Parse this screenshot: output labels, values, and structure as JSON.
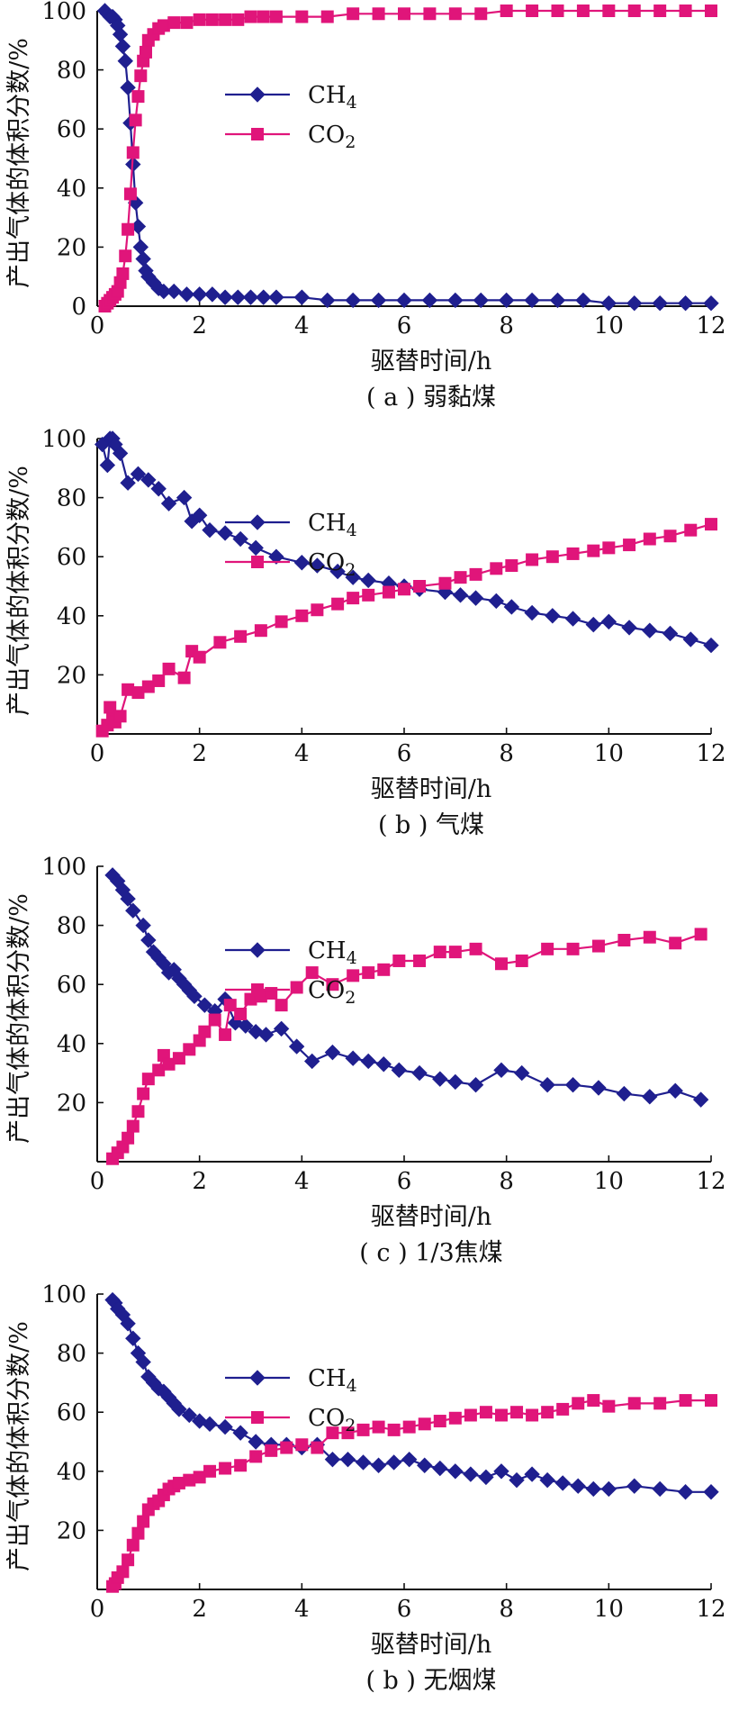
{
  "colors": {
    "ch4": "#1f1f8f",
    "co2": "#e0157a"
  },
  "chart_data": [
    {
      "type": "line",
      "caption": "( a ) 弱黏煤",
      "xlabel": "驱替时间/h",
      "ylabel": "产出气体的体积分数/%",
      "xlim": [
        0,
        12
      ],
      "ylim": [
        0,
        100
      ],
      "xticks": [
        0,
        2,
        4,
        6,
        8,
        10,
        12
      ],
      "yticks": [
        0,
        20,
        40,
        60,
        80,
        100
      ],
      "legend": [
        "CH4",
        "CO2"
      ],
      "series": [
        {
          "name": "CH4",
          "marker": "diamond",
          "x": [
            0.15,
            0.2,
            0.25,
            0.3,
            0.35,
            0.4,
            0.45,
            0.5,
            0.55,
            0.6,
            0.65,
            0.7,
            0.75,
            0.8,
            0.85,
            0.9,
            0.95,
            1.0,
            1.1,
            1.2,
            1.3,
            1.5,
            1.75,
            2.0,
            2.25,
            2.5,
            2.75,
            3.0,
            3.25,
            3.5,
            4.0,
            4.5,
            5.0,
            5.5,
            6.0,
            6.5,
            7.0,
            7.5,
            8.0,
            8.5,
            9.0,
            9.5,
            10.0,
            10.5,
            11.0,
            11.5,
            12.0
          ],
          "y": [
            100,
            99,
            98,
            98,
            97,
            95,
            92,
            88,
            83,
            74,
            62,
            48,
            35,
            27,
            20,
            16,
            12,
            10,
            8,
            6,
            5,
            5,
            4,
            4,
            4,
            3,
            3,
            3,
            3,
            3,
            3,
            2,
            2,
            2,
            2,
            2,
            2,
            2,
            2,
            2,
            2,
            2,
            1,
            1,
            1,
            1,
            1
          ]
        },
        {
          "name": "CO2",
          "marker": "square",
          "x": [
            0.15,
            0.2,
            0.25,
            0.3,
            0.35,
            0.4,
            0.45,
            0.5,
            0.55,
            0.6,
            0.65,
            0.7,
            0.75,
            0.8,
            0.85,
            0.9,
            0.95,
            1.0,
            1.1,
            1.2,
            1.3,
            1.5,
            1.75,
            2.0,
            2.25,
            2.5,
            2.75,
            3.0,
            3.25,
            3.5,
            4.0,
            4.5,
            5.0,
            5.5,
            6.0,
            6.5,
            7.0,
            7.5,
            8.0,
            8.5,
            9.0,
            9.5,
            10.0,
            10.5,
            11.0,
            11.5,
            12.0
          ],
          "y": [
            0,
            1,
            2,
            3,
            4,
            5,
            8,
            11,
            17,
            26,
            38,
            52,
            63,
            71,
            78,
            83,
            86,
            90,
            92,
            94,
            95,
            96,
            96,
            97,
            97,
            97,
            97,
            98,
            98,
            98,
            98,
            98,
            99,
            99,
            99,
            99,
            99,
            99,
            100,
            100,
            100,
            100,
            100,
            100,
            100,
            100,
            100
          ]
        }
      ]
    },
    {
      "type": "line",
      "caption": "( b ) 气煤",
      "xlabel": "驱替时间/h",
      "ylabel": "产出气体的体积分数/%",
      "xlim": [
        0,
        12
      ],
      "ylim": [
        0,
        100
      ],
      "xticks": [
        0,
        2,
        4,
        6,
        8,
        10,
        12
      ],
      "yticks": [
        20,
        40,
        60,
        80,
        100
      ],
      "ytick_labels_zero_on_x": true,
      "legend": [
        "CH4",
        "CO2"
      ],
      "series": [
        {
          "name": "CH4",
          "marker": "diamond",
          "x": [
            0.1,
            0.2,
            0.25,
            0.3,
            0.35,
            0.45,
            0.6,
            0.8,
            1.0,
            1.2,
            1.4,
            1.7,
            1.85,
            2.0,
            2.2,
            2.5,
            2.8,
            3.1,
            3.5,
            4.0,
            4.3,
            4.7,
            5.0,
            5.3,
            5.7,
            6.0,
            6.3,
            6.8,
            7.1,
            7.4,
            7.8,
            8.1,
            8.5,
            8.9,
            9.3,
            9.7,
            10.0,
            10.4,
            10.8,
            11.2,
            11.6,
            12.0
          ],
          "y": [
            98,
            91,
            100,
            100,
            98,
            95,
            85,
            88,
            86,
            83,
            78,
            80,
            72,
            74,
            69,
            68,
            66,
            63,
            60,
            58,
            57,
            55,
            53,
            52,
            51,
            50,
            49,
            48,
            47,
            46,
            45,
            43,
            41,
            40,
            39,
            37,
            38,
            36,
            35,
            34,
            32,
            30
          ]
        },
        {
          "name": "CO2",
          "marker": "square",
          "x": [
            0.1,
            0.2,
            0.25,
            0.3,
            0.35,
            0.45,
            0.6,
            0.8,
            1.0,
            1.2,
            1.4,
            1.7,
            1.85,
            2.0,
            2.4,
            2.8,
            3.2,
            3.6,
            4.0,
            4.3,
            4.7,
            5.0,
            5.3,
            5.7,
            6.0,
            6.3,
            6.8,
            7.1,
            7.4,
            7.8,
            8.1,
            8.5,
            8.9,
            9.3,
            9.7,
            10.0,
            10.4,
            10.8,
            11.2,
            11.6,
            12.0
          ],
          "y": [
            1,
            3,
            9,
            5,
            4,
            6,
            15,
            14,
            16,
            18,
            22,
            19,
            28,
            26,
            31,
            33,
            35,
            38,
            40,
            42,
            44,
            46,
            47,
            48,
            49,
            50,
            51,
            53,
            54,
            56,
            57,
            59,
            60,
            61,
            62,
            63,
            64,
            66,
            67,
            69,
            71
          ]
        }
      ]
    },
    {
      "type": "line",
      "caption": "( c ) 1/3焦煤",
      "xlabel": "驱替时间/h",
      "ylabel": "产出气体的体积分数/%",
      "xlim": [
        0,
        12
      ],
      "ylim": [
        0,
        100
      ],
      "xticks": [
        0,
        2,
        4,
        6,
        8,
        10,
        12
      ],
      "yticks": [
        20,
        40,
        60,
        80,
        100
      ],
      "ytick_labels_zero_on_x": true,
      "legend": [
        "CH4",
        "CO2"
      ],
      "series": [
        {
          "name": "CH4",
          "marker": "diamond",
          "x": [
            0.3,
            0.4,
            0.5,
            0.6,
            0.7,
            0.9,
            1.0,
            1.1,
            1.2,
            1.3,
            1.4,
            1.5,
            1.6,
            1.7,
            1.8,
            1.9,
            2.1,
            2.3,
            2.5,
            2.7,
            2.9,
            3.1,
            3.3,
            3.6,
            3.9,
            4.2,
            4.6,
            5.0,
            5.3,
            5.6,
            5.9,
            6.3,
            6.7,
            7.0,
            7.4,
            7.9,
            8.3,
            8.8,
            9.3,
            9.8,
            10.3,
            10.8,
            11.3,
            11.8
          ],
          "y": [
            97,
            95,
            92,
            89,
            85,
            80,
            75,
            71,
            69,
            67,
            64,
            65,
            62,
            60,
            58,
            56,
            53,
            51,
            55,
            47,
            46,
            44,
            43,
            45,
            39,
            34,
            37,
            35,
            34,
            33,
            31,
            30,
            28,
            27,
            26,
            31,
            30,
            26,
            26,
            25,
            23,
            22,
            24,
            21
          ]
        },
        {
          "name": "CO2",
          "marker": "square",
          "x": [
            0.3,
            0.4,
            0.5,
            0.6,
            0.7,
            0.8,
            0.9,
            1.0,
            1.2,
            1.3,
            1.4,
            1.6,
            1.8,
            2.0,
            2.1,
            2.3,
            2.5,
            2.6,
            2.8,
            3.0,
            3.2,
            3.4,
            3.6,
            3.9,
            4.2,
            4.6,
            5.0,
            5.3,
            5.6,
            5.9,
            6.3,
            6.7,
            7.0,
            7.4,
            7.9,
            8.3,
            8.8,
            9.3,
            9.8,
            10.3,
            10.8,
            11.3,
            11.8
          ],
          "y": [
            1,
            3,
            5,
            8,
            12,
            17,
            23,
            28,
            31,
            36,
            33,
            35,
            38,
            41,
            44,
            48,
            43,
            53,
            50,
            55,
            56,
            57,
            53,
            59,
            64,
            60,
            63,
            64,
            65,
            68,
            68,
            71,
            71,
            72,
            67,
            68,
            72,
            72,
            73,
            75,
            76,
            74,
            77
          ]
        }
      ]
    },
    {
      "type": "line",
      "caption": "( b ) 无烟煤",
      "xlabel": "驱替时间/h",
      "ylabel": "产出气体的体积分数/%",
      "xlim": [
        0,
        12
      ],
      "ylim": [
        0,
        100
      ],
      "xticks": [
        0,
        2,
        4,
        6,
        8,
        10,
        12
      ],
      "yticks": [
        20,
        40,
        60,
        80,
        100
      ],
      "ytick_labels_zero_on_x": true,
      "legend": [
        "CH4",
        "CO2"
      ],
      "series": [
        {
          "name": "CH4",
          "marker": "diamond",
          "x": [
            0.3,
            0.35,
            0.4,
            0.5,
            0.6,
            0.7,
            0.8,
            0.9,
            1.0,
            1.1,
            1.2,
            1.3,
            1.4,
            1.5,
            1.6,
            1.8,
            2.0,
            2.2,
            2.5,
            2.8,
            3.1,
            3.4,
            3.7,
            4.0,
            4.3,
            4.6,
            4.9,
            5.2,
            5.5,
            5.8,
            6.1,
            6.4,
            6.7,
            7.0,
            7.3,
            7.6,
            7.9,
            8.2,
            8.5,
            8.8,
            9.1,
            9.4,
            9.7,
            10.0,
            10.5,
            11.0,
            11.5,
            12.0
          ],
          "y": [
            98,
            97,
            95,
            93,
            90,
            85,
            80,
            77,
            72,
            70,
            68,
            67,
            65,
            63,
            61,
            59,
            57,
            56,
            55,
            53,
            50,
            49,
            49,
            48,
            49,
            44,
            44,
            43,
            42,
            43,
            44,
            42,
            41,
            40,
            39,
            38,
            40,
            37,
            39,
            37,
            36,
            35,
            34,
            34,
            35,
            34,
            33,
            33
          ]
        },
        {
          "name": "CO2",
          "marker": "square",
          "x": [
            0.3,
            0.35,
            0.4,
            0.5,
            0.6,
            0.7,
            0.8,
            0.9,
            1.0,
            1.1,
            1.2,
            1.3,
            1.4,
            1.5,
            1.6,
            1.8,
            2.0,
            2.2,
            2.5,
            2.8,
            3.1,
            3.4,
            3.7,
            4.0,
            4.3,
            4.6,
            4.9,
            5.2,
            5.5,
            5.8,
            6.1,
            6.4,
            6.7,
            7.0,
            7.3,
            7.6,
            7.9,
            8.2,
            8.5,
            8.8,
            9.1,
            9.4,
            9.7,
            10.0,
            10.5,
            11.0,
            11.5,
            12.0
          ],
          "y": [
            1,
            2,
            4,
            6,
            10,
            15,
            19,
            23,
            27,
            29,
            30,
            32,
            34,
            35,
            36,
            37,
            38,
            40,
            41,
            42,
            45,
            47,
            48,
            49,
            48,
            53,
            53,
            54,
            55,
            54,
            55,
            56,
            57,
            58,
            59,
            60,
            59,
            60,
            59,
            60,
            61,
            63,
            64,
            62,
            63,
            63,
            64,
            64
          ]
        }
      ]
    }
  ]
}
